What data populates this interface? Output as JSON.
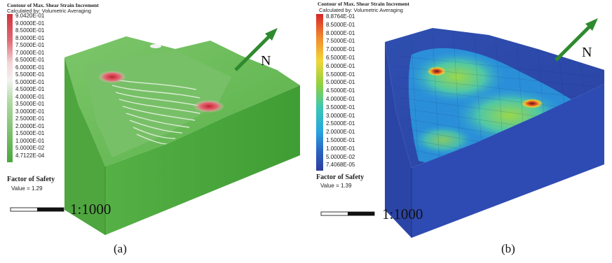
{
  "panel_a": {
    "legend_title": "Contour of Max. Shear Strain Increment",
    "legend_subtitle": "Calculated by: Volumetric Averaging",
    "ticks": [
      "9.0420E-01",
      "9.0000E-01",
      "8.5000E-01",
      "8.0000E-01",
      "7.5000E-01",
      "7.0000E-01",
      "6.5000E-01",
      "6.0000E-01",
      "5.5000E-01",
      "5.0000E-01",
      "4.5000E-01",
      "4.0000E-01",
      "3.5000E-01",
      "3.0000E-01",
      "2.5000E-01",
      "2.0000E-01",
      "1.5000E-01",
      "1.0000E-01",
      "5.0000E-02",
      "4.7122E-04"
    ],
    "fos_title": "Factor of Safety",
    "fos_value": "Value = 1.29",
    "scale": "1:1000",
    "north": "N",
    "caption": "(a)",
    "colors": {
      "high": "#d0323e",
      "mid": "#f2f2f2",
      "low": "#4aa83a"
    }
  },
  "panel_b": {
    "legend_title": "Contour of Max. Shear Strain Increment",
    "legend_subtitle": "Calculated by: Volumetric Averaging",
    "ticks": [
      "8.8764E-01",
      "8.5000E-01",
      "8.0000E-01",
      "7.5000E-01",
      "7.0000E-01",
      "6.5000E-01",
      "6.0000E-01",
      "5.5000E-01",
      "5.0000E-01",
      "4.5000E-01",
      "4.0000E-01",
      "3.5000E-01",
      "3.0000E-01",
      "2.5000E-01",
      "2.0000E-01",
      "1.5000E-01",
      "1.0000E-01",
      "5.0000E-02",
      "7.4068E-05"
    ],
    "fos_title": "Factor of Safety",
    "fos_value": "Value = 1.39",
    "scale": "1:1000",
    "north": "N",
    "caption": "(b)",
    "colors": {
      "high": "#d7262a",
      "mid": "#8fd13f",
      "low": "#2c3e9c"
    }
  },
  "colors": {
    "arrow": "#2f8a2f"
  }
}
